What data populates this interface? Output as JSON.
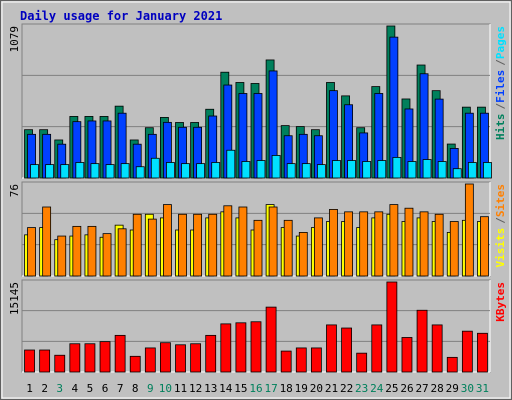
{
  "chart_data": [
    {
      "type": "bar",
      "title": "Daily usage for January 2021",
      "ylim": [
        0,
        1079
      ],
      "grid_divisions": 3,
      "legend_separator": "/",
      "series": [
        {
          "name": "Pages",
          "color": "#00e0ff",
          "values": [
            95,
            95,
            95,
            110,
            102,
            95,
            102,
            80,
            140,
            110,
            102,
            102,
            110,
            197,
            117,
            124,
            160,
            102,
            102,
            95,
            124,
            124,
            117,
            124,
            146,
            117,
            131,
            117,
            66,
            110,
            110
          ]
        },
        {
          "name": "Files",
          "color": "#0040ff",
          "values": [
            310,
            310,
            240,
            400,
            405,
            405,
            460,
            240,
            310,
            395,
            360,
            360,
            440,
            660,
            600,
            600,
            760,
            300,
            310,
            300,
            620,
            520,
            320,
            600,
            1000,
            490,
            740,
            560,
            210,
            460,
            460
          ]
        },
        {
          "name": "Hits",
          "color": "#00805c",
          "values": [
            343,
            343,
            270,
            437,
            437,
            437,
            510,
            270,
            357,
            430,
            394,
            394,
            488,
            751,
            678,
            671,
            838,
            372,
            365,
            343,
            678,
            583,
            357,
            649,
            1079,
            561,
            802,
            620,
            241,
            503,
            503
          ]
        }
      ]
    },
    {
      "type": "bar",
      "ylim": [
        0,
        76
      ],
      "grid_divisions": 3,
      "legend_separator": "/",
      "series": [
        {
          "name": "Sites",
          "color": "#ff8000",
          "values": [
            40,
            57,
            33,
            41,
            41,
            35,
            39,
            51,
            47,
            59,
            51,
            51,
            51,
            58,
            57,
            46,
            57,
            46,
            36,
            48,
            55,
            53,
            53,
            53,
            59,
            56,
            53,
            51,
            45,
            76,
            49
          ]
        },
        {
          "name": "Visits",
          "color": "#ffff00",
          "values": [
            34,
            40,
            30,
            33,
            34,
            32,
            42,
            38,
            51,
            48,
            38,
            38,
            48,
            53,
            48,
            38,
            59,
            40,
            33,
            40,
            45,
            45,
            40,
            48,
            51,
            45,
            48,
            45,
            36,
            46,
            45
          ]
        }
      ]
    },
    {
      "type": "bar",
      "ylim": [
        0,
        15145
      ],
      "grid_divisions": 3,
      "series": [
        {
          "name": "KBytes",
          "color": "#ff0000",
          "values": [
            3700,
            3700,
            2820,
            4755,
            4755,
            5110,
            6165,
            2640,
            4050,
            4930,
            4580,
            4755,
            6165,
            8100,
            8280,
            8455,
            10920,
            3520,
            4050,
            4050,
            7925,
            7400,
            3170,
            7925,
            15145,
            5810,
            10390,
            7925,
            2465,
            6870,
            6515
          ]
        }
      ],
      "categories": [
        "1",
        "2",
        "3",
        "4",
        "5",
        "6",
        "7",
        "8",
        "9",
        "10",
        "11",
        "12",
        "13",
        "14",
        "15",
        "16",
        "17",
        "18",
        "19",
        "20",
        "21",
        "22",
        "23",
        "24",
        "25",
        "26",
        "27",
        "28",
        "29",
        "30",
        "31"
      ],
      "category_colors": [
        "#000000",
        "#000000",
        "#00805c",
        "#000000",
        "#000000",
        "#000000",
        "#000000",
        "#000000",
        "#00805c",
        "#00805c",
        "#000000",
        "#000000",
        "#000000",
        "#000000",
        "#000000",
        "#00805c",
        "#00805c",
        "#000000",
        "#000000",
        "#000000",
        "#000000",
        "#000000",
        "#00805c",
        "#00805c",
        "#000000",
        "#000000",
        "#000000",
        "#000000",
        "#000000",
        "#00805c",
        "#00805c"
      ]
    }
  ]
}
